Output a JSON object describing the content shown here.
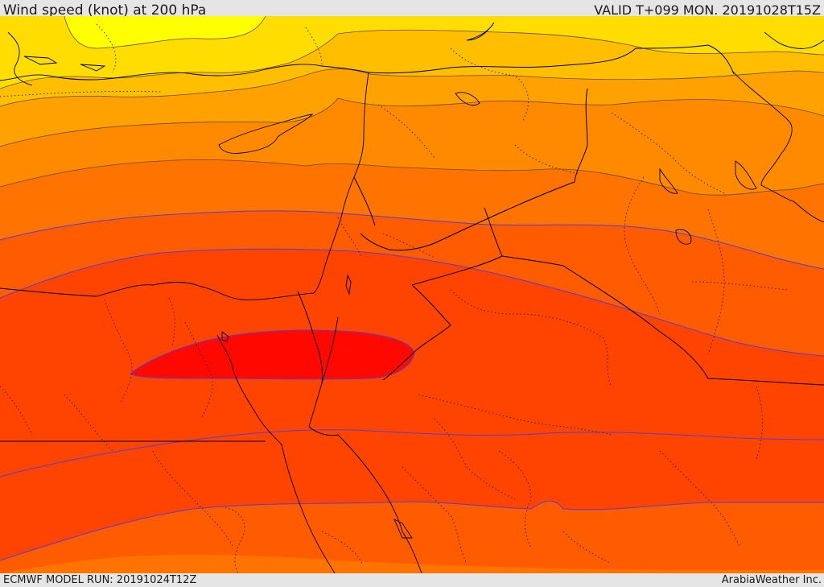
{
  "header": {
    "title": "Wind speed (knot) at 200 hPa",
    "valid": "VALID T+099 MON. 20191028T15Z"
  },
  "footer": {
    "model_run": "ECMWF MODEL RUN: 20191024T12Z",
    "credit": "ArabiaWeather Inc."
  },
  "map": {
    "field": "wind speed at 200 hPa",
    "units": "knot",
    "fill_colors": [
      "#ffff00",
      "#ffdd00",
      "#ffbf00",
      "#ffa100",
      "#ff8a00",
      "#ff7300",
      "#ff5b00",
      "#ff4300",
      "#ff2b00",
      "#ff0800"
    ],
    "contour_color": "#5a3ccf",
    "coastline_color": "#000000",
    "border_style": "dotted"
  }
}
